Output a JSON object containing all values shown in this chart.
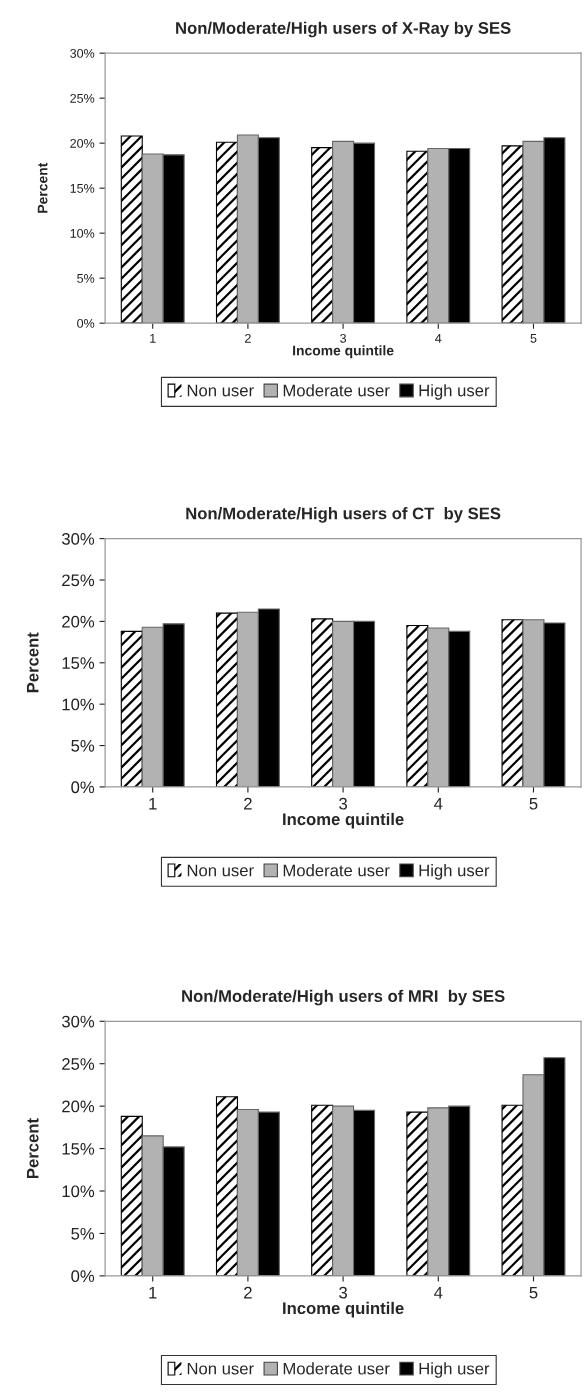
{
  "chart_data": [
    {
      "type": "bar",
      "title": "Non/Moderate/High users of X-Ray by SES",
      "xlabel": "Income quintile",
      "ylabel": "Percent",
      "categories": [
        "1",
        "2",
        "3",
        "4",
        "5"
      ],
      "series": [
        {
          "name": "Non user",
          "color": "#ffffff",
          "values": [
            20.8,
            20.1,
            19.5,
            19.1,
            19.7
          ]
        },
        {
          "name": "Moderate user",
          "color": "#b2b2b2",
          "values": [
            18.8,
            20.9,
            20.2,
            19.4,
            20.2
          ]
        },
        {
          "name": "High user",
          "color": "#000000",
          "values": [
            18.7,
            20.6,
            20.0,
            19.4,
            20.6
          ]
        }
      ],
      "ylim": [
        0,
        30
      ],
      "yticks": [
        {
          "value": 0,
          "label": "0%"
        },
        {
          "value": 5,
          "label": "5%"
        },
        {
          "value": 10,
          "label": "10%"
        },
        {
          "value": 15,
          "label": "15%"
        },
        {
          "value": 20,
          "label": "20%"
        },
        {
          "value": 25,
          "label": "25%"
        },
        {
          "value": 30,
          "label": "30%"
        }
      ],
      "grid": false,
      "legend": "bottom"
    },
    {
      "type": "bar",
      "title": "Non/Moderate/High users of CT  by SES",
      "xlabel": "Income quintile",
      "ylabel": "Percent",
      "categories": [
        "1",
        "2",
        "3",
        "4",
        "5"
      ],
      "series": [
        {
          "name": "Non user",
          "color": "#ffffff",
          "values": [
            18.8,
            21.0,
            20.3,
            19.5,
            20.2
          ]
        },
        {
          "name": "Moderate user",
          "color": "#b2b2b2",
          "values": [
            19.3,
            21.1,
            20.0,
            19.2,
            20.2
          ]
        },
        {
          "name": "High user",
          "color": "#000000",
          "values": [
            19.7,
            21.5,
            20.0,
            18.8,
            19.8
          ]
        }
      ],
      "ylim": [
        0,
        30
      ],
      "yticks": [
        {
          "value": 0,
          "label": "0%"
        },
        {
          "value": 5,
          "label": "5%"
        },
        {
          "value": 10,
          "label": "10%"
        },
        {
          "value": 15,
          "label": "15%"
        },
        {
          "value": 20,
          "label": "20%"
        },
        {
          "value": 25,
          "label": "25%"
        },
        {
          "value": 30,
          "label": "30%"
        }
      ],
      "grid": false,
      "legend": "bottom"
    },
    {
      "type": "bar",
      "title": "Non/Moderate/High users of MRI  by SES",
      "xlabel": "Income quintile",
      "ylabel": "Percent",
      "categories": [
        "1",
        "2",
        "3",
        "4",
        "5"
      ],
      "series": [
        {
          "name": "Non user",
          "color": "#ffffff",
          "values": [
            18.8,
            21.1,
            20.1,
            19.3,
            20.1
          ]
        },
        {
          "name": "Moderate user",
          "color": "#b2b2b2",
          "values": [
            16.5,
            19.6,
            20.0,
            19.8,
            23.7
          ]
        },
        {
          "name": "High user",
          "color": "#000000",
          "values": [
            15.2,
            19.3,
            19.5,
            20.0,
            25.7
          ]
        }
      ],
      "ylim": [
        0,
        30
      ],
      "yticks": [
        {
          "value": 0,
          "label": "0%"
        },
        {
          "value": 5,
          "label": "5%"
        },
        {
          "value": 10,
          "label": "10%"
        },
        {
          "value": 15,
          "label": "15%"
        },
        {
          "value": 20,
          "label": "20%"
        },
        {
          "value": 25,
          "label": "25%"
        },
        {
          "value": 30,
          "label": "30%"
        }
      ],
      "grid": false,
      "legend": "bottom"
    }
  ]
}
